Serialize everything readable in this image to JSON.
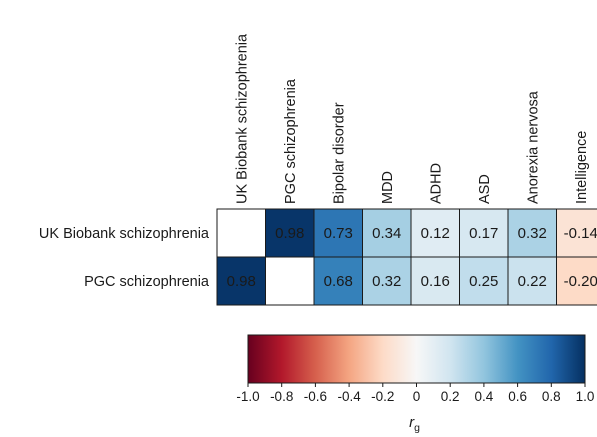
{
  "chart_data": {
    "type": "heatmap",
    "rows": [
      "UK Biobank schizophrenia",
      "PGC schizophrenia"
    ],
    "columns": [
      "UK Biobank schizophrenia",
      "PGC schizophrenia",
      "Bipolar disorder",
      "MDD",
      "ADHD",
      "ASD",
      "Anorexia nervosa",
      "Intelligence"
    ],
    "values": [
      [
        null,
        0.98,
        0.73,
        0.34,
        0.12,
        0.17,
        0.32,
        -0.14
      ],
      [
        0.98,
        null,
        0.68,
        0.32,
        0.16,
        0.25,
        0.22,
        -0.2
      ]
    ],
    "value_labels": [
      [
        "",
        "0.98",
        "0.73",
        "0.34",
        "0.12",
        "0.17",
        "0.32",
        "-0.14"
      ],
      [
        "0.98",
        "",
        "0.68",
        "0.32",
        "0.16",
        "0.25",
        "0.22",
        "-0.20"
      ]
    ],
    "colorbar": {
      "label_main": "r",
      "label_sub": "g",
      "range": [
        -1.0,
        1.0
      ],
      "ticks": [
        "-1.0",
        "-0.8",
        "-0.6",
        "-0.4",
        "-0.2",
        "0",
        "0.2",
        "0.4",
        "0.6",
        "0.8",
        "1.0"
      ],
      "colormap": "RdBu"
    },
    "colors": {
      "strong_pos": "#1a3a6d",
      "neutral": "#ffffff",
      "strong_neg": "#6b0a17"
    }
  }
}
